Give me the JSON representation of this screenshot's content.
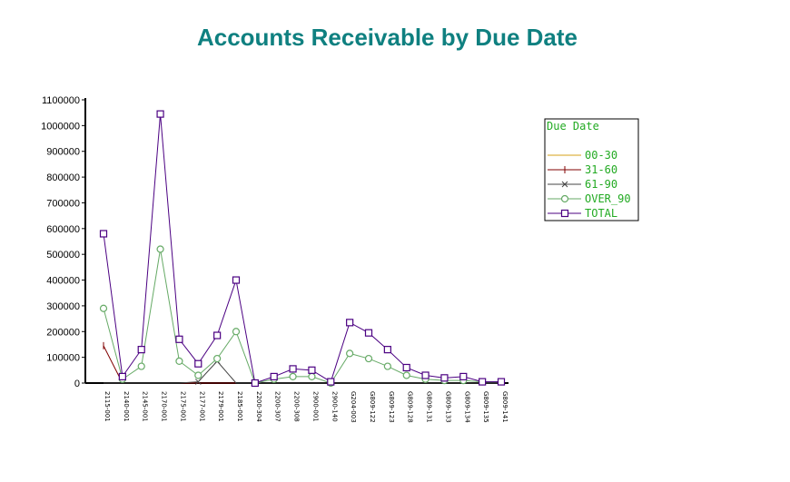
{
  "chart_data": {
    "type": "line",
    "title": "Accounts Receivable by Due Date",
    "xlabel": "",
    "ylabel": "",
    "ylim": [
      0,
      1100000
    ],
    "yticks": [
      0,
      100000,
      200000,
      300000,
      400000,
      500000,
      600000,
      700000,
      800000,
      900000,
      1000000,
      1100000
    ],
    "grid": false,
    "legend_position": "right",
    "legend_title": "Due Date",
    "categories": [
      "2115-001",
      "2140-001",
      "2145-001",
      "2170-001",
      "2175-001",
      "2177-001",
      "2179-001",
      "2185-001",
      "2200-304",
      "2200-307",
      "2200-308",
      "2900-001",
      "2900-140",
      "G204-003",
      "G809-122",
      "G809-123",
      "G809-128",
      "G809-131",
      "G809-133",
      "G809-134",
      "G809-135",
      "G809-141"
    ],
    "series": [
      {
        "name": "00-30",
        "color": "#d4a017",
        "marker": "none",
        "values": [
          0,
          0,
          0,
          0,
          0,
          0,
          0,
          0,
          0,
          0,
          0,
          0,
          0,
          0,
          0,
          0,
          0,
          0,
          0,
          0,
          0,
          0
        ]
      },
      {
        "name": "31-60",
        "color": "#800000",
        "marker": "vline",
        "values": [
          145000,
          0,
          0,
          0,
          0,
          0,
          0,
          0,
          0,
          0,
          0,
          0,
          0,
          0,
          0,
          0,
          0,
          0,
          0,
          0,
          0,
          0
        ]
      },
      {
        "name": "61-90",
        "color": "#444444",
        "marker": "x",
        "values": [
          0,
          0,
          0,
          0,
          0,
          5000,
          85000,
          0,
          0,
          0,
          0,
          0,
          0,
          0,
          0,
          0,
          0,
          0,
          0,
          0,
          0,
          0
        ]
      },
      {
        "name": "OVER_90",
        "color": "#66aa66",
        "marker": "circle",
        "values": [
          290000,
          15000,
          65000,
          520000,
          85000,
          30000,
          95000,
          200000,
          0,
          15000,
          25000,
          25000,
          0,
          115000,
          95000,
          65000,
          30000,
          15000,
          10000,
          10000,
          5000,
          5000
        ]
      },
      {
        "name": "TOTAL",
        "color": "#4b0082",
        "marker": "square",
        "values": [
          580000,
          25000,
          130000,
          1045000,
          170000,
          75000,
          185000,
          400000,
          0,
          25000,
          55000,
          50000,
          5000,
          235000,
          195000,
          130000,
          60000,
          30000,
          20000,
          25000,
          5000,
          5000
        ]
      }
    ]
  }
}
